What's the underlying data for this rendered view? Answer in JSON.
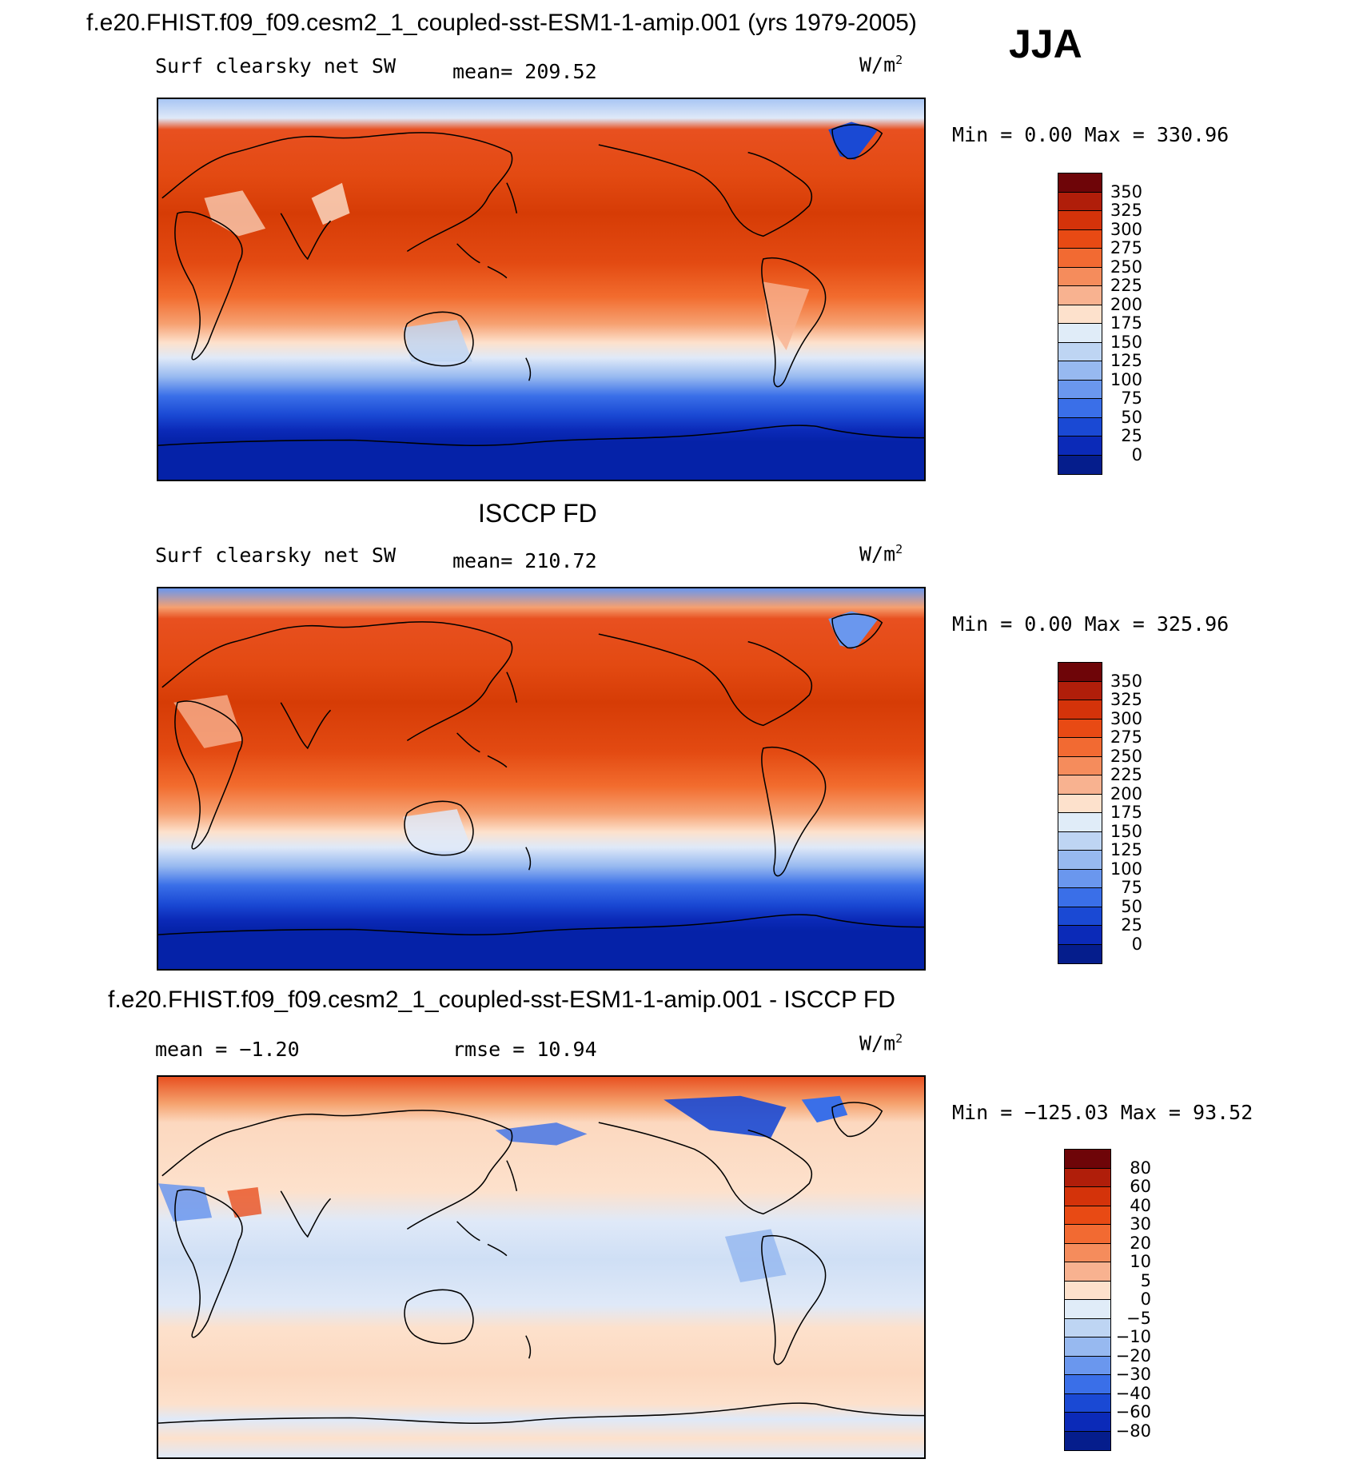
{
  "figure": {
    "title": "f.e20.FHIST.f09_f09.cesm2_1_coupled-sst-ESM1-1-amip.001 (yrs 1979-2005)",
    "season": "JJA"
  },
  "panels": [
    {
      "id": "model",
      "variable_label": "Surf clearsky net SW",
      "mean_text": "mean= 209.52",
      "units_base": "W/m",
      "units_exp": "2",
      "minmax_text": "Min =    0.00 Max = 330.96",
      "colorbar_labels": [
        "350",
        "325",
        "300",
        "275",
        "250",
        "225",
        "200",
        "175",
        "150",
        "125",
        "100",
        "75",
        "50",
        "25",
        "0"
      ],
      "colorbar_colors": [
        "#6e0508",
        "#b01e0a",
        "#d4330a",
        "#e84a14",
        "#f26a32",
        "#f58c5c",
        "#f8b290",
        "#fde1cc",
        "#e0ecf8",
        "#bed5f3",
        "#97b9f0",
        "#6a97ee",
        "#3a6fe8",
        "#1a49d4",
        "#0b2ab8",
        "#051d8c"
      ]
    },
    {
      "id": "obs",
      "heading": "ISCCP FD",
      "variable_label": "Surf clearsky net SW",
      "mean_text": "mean= 210.72",
      "units_base": "W/m",
      "units_exp": "2",
      "minmax_text": "Min =    0.00 Max = 325.96",
      "colorbar_labels": [
        "350",
        "325",
        "300",
        "275",
        "250",
        "225",
        "200",
        "175",
        "150",
        "125",
        "100",
        "75",
        "50",
        "25",
        "0"
      ],
      "colorbar_colors": [
        "#6e0508",
        "#b01e0a",
        "#d4330a",
        "#e84a14",
        "#f26a32",
        "#f58c5c",
        "#f8b290",
        "#fde1cc",
        "#e0ecf8",
        "#bed5f3",
        "#97b9f0",
        "#6a97ee",
        "#3a6fe8",
        "#1a49d4",
        "#0b2ab8",
        "#051d8c"
      ]
    },
    {
      "id": "diff",
      "heading": "f.e20.FHIST.f09_f09.cesm2_1_coupled-sst-ESM1-1-amip.001 - ISCCP FD",
      "mean_text": "mean =   −1.20",
      "rmse_text": "rmse =   10.94",
      "units_base": "W/m",
      "units_exp": "2",
      "minmax_text": "Min = −125.03 Max =  93.52",
      "colorbar_labels": [
        "80",
        "60",
        "40",
        "30",
        "20",
        "10",
        "5",
        "0",
        "−5",
        "−10",
        "−20",
        "−30",
        "−40",
        "−60",
        "−80"
      ],
      "colorbar_colors": [
        "#6e0508",
        "#b01e0a",
        "#d4330a",
        "#e84a14",
        "#f26a32",
        "#f58c5c",
        "#f8b290",
        "#fde1cc",
        "#e0ecf8",
        "#bed5f3",
        "#97b9f0",
        "#6a97ee",
        "#3a6fe8",
        "#1a49d4",
        "#0b2ab8",
        "#051d8c"
      ]
    }
  ],
  "colors": {
    "ocean_band_gradient_model": [
      "#a9c6f4",
      "#dfe9f8",
      "#e85020",
      "#e34a12",
      "#d63c06",
      "#d63c06",
      "#e34a12",
      "#f26c2e",
      "#f6a070",
      "#fde1cc",
      "#dfe9f8",
      "#97b9f0",
      "#3a6fe8",
      "#1a49d4",
      "#0b2ab8",
      "#051d8c",
      "#0522a8"
    ],
    "ocean_band_gradient_diff": [
      "#e85020",
      "#f5a26e",
      "#fcd8bf",
      "#fde1cc",
      "#dfe9f8",
      "#cfdff5",
      "#dfe9f8",
      "#fde1cc",
      "#fcd8bf",
      "#fde1cc",
      "#dfe9f8",
      "#fde1cc",
      "#dfe9f8"
    ],
    "coastline": "#000000"
  }
}
